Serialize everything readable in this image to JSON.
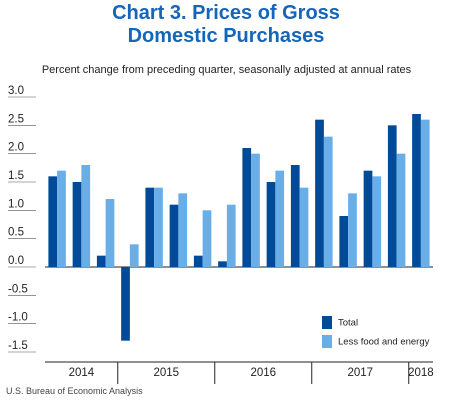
{
  "chart_data": {
    "type": "bar",
    "title": "Chart 3. Prices of Gross Domestic Purchases",
    "subtitle": "Percent change from preceding quarter, seasonally adjusted at annual rates",
    "source": "U.S. Bureau of Economic Analysis",
    "categories": [
      "2014",
      "2014",
      "2014",
      "2015",
      "2015",
      "2015",
      "2015",
      "2016",
      "2016",
      "2016",
      "2016",
      "2017",
      "2017",
      "2017",
      "2017",
      "2018"
    ],
    "series": [
      {
        "name": "Total",
        "color": "#004a98",
        "values": [
          1.6,
          1.5,
          0.2,
          -1.3,
          1.4,
          1.1,
          0.2,
          0.1,
          2.1,
          1.5,
          1.8,
          2.6,
          0.9,
          1.7,
          2.5,
          2.7
        ]
      },
      {
        "name": "Less food and energy",
        "color": "#6aaee8",
        "values": [
          1.7,
          1.8,
          1.2,
          0.4,
          1.4,
          1.3,
          1.0,
          1.1,
          2.0,
          1.7,
          1.4,
          2.3,
          1.3,
          1.6,
          2.0,
          2.6
        ]
      }
    ],
    "ylim": [
      -1.5,
      3.0
    ],
    "yticks": [
      {
        "value": 3,
        "label": "3.0"
      },
      2.5,
      {
        "value": 2,
        "label": "2.0"
      },
      1.5,
      {
        "value": 1,
        "label": "1.0"
      },
      0.5,
      {
        "value": 0,
        "label": "0.0"
      },
      -0.5,
      {
        "value": -1,
        "label": "-1.0"
      },
      -1.5
    ],
    "grid": false,
    "legend": "lower right"
  }
}
